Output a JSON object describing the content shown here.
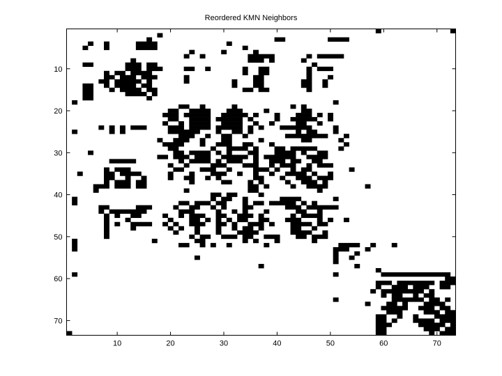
{
  "chart_data": {
    "type": "heatmap",
    "title": "Reordered KMN Neighbors",
    "xlabel": "",
    "ylabel": "",
    "xlim": [
      0.5,
      73.5
    ],
    "ylim": [
      0.5,
      73.5
    ],
    "y_reversed": true,
    "grid": false,
    "x_ticks": [
      10,
      20,
      30,
      40,
      50,
      60,
      70
    ],
    "y_ticks": [
      10,
      20,
      30,
      40,
      50,
      60,
      70
    ],
    "colors": {
      "filled": "#000000",
      "empty": "#ffffff"
    },
    "nonzeros_by_row": [
      [
        59,
        73
      ],
      [
        18
      ],
      [
        16,
        [
          40,
          41
        ],
        [
          50,
          53
        ]
      ],
      [
        5,
        8,
        [
          14,
          17
        ],
        31
      ],
      [
        4,
        8,
        [
          14,
          17
        ],
        34
      ],
      [
        24,
        30,
        36
      ],
      [
        23,
        26,
        [
          35,
          39
        ],
        46,
        [
          48,
          52
        ]
      ],
      [
        13,
        [
          35,
          37
        ],
        39,
        45
      ],
      [
        [
          4,
          5
        ],
        [
          12,
          14
        ],
        [
          16,
          17
        ],
        47
      ],
      [
        [
          12,
          14
        ],
        [
          16,
          18
        ],
        [
          23,
          24
        ],
        27,
        34,
        [
          37,
          38
        ],
        46,
        [
          48,
          50
        ]
      ],
      [
        8,
        [
          10,
          11
        ],
        [
          13,
          16
        ],
        34,
        [
          37,
          38
        ],
        46
      ],
      [
        [
          8,
          9
        ],
        [
          11,
          13
        ],
        [
          15,
          17
        ],
        23,
        [
          36,
          37
        ],
        46,
        50
      ],
      [
        [
          7,
          8
        ],
        [
          10,
          14
        ],
        16,
        23,
        32,
        [
          36,
          37
        ],
        [
          45,
          46
        ],
        49
      ],
      [
        [
          4,
          5
        ],
        8,
        [
          10,
          13
        ],
        [
          15,
          16
        ],
        32,
        [
          36,
          37
        ],
        [
          45,
          46
        ],
        49
      ],
      [
        [
          4,
          5
        ],
        9,
        [
          11,
          14
        ],
        [
          16,
          17
        ],
        [
          34,
          35
        ],
        [
          37,
          38
        ],
        46
      ],
      [
        [
          4,
          5
        ],
        [
          12,
          15
        ],
        17
      ],
      [
        [
          4,
          5
        ],
        16
      ],
      [
        2,
        51
      ],
      [
        [
          22,
          23
        ],
        26,
        32,
        43,
        45
      ],
      [
        [
          20,
          21
        ],
        [
          24,
          27
        ],
        [
          31,
          33
        ],
        38,
        [
          45,
          46
        ]
      ],
      [
        [
          19,
          21
        ],
        [
          23,
          27
        ],
        [
          30,
          34
        ],
        36,
        40,
        [
          44,
          46
        ],
        48,
        50
      ],
      [
        [
          20,
          21
        ],
        [
          24,
          27
        ],
        [
          29,
          33
        ],
        35,
        40,
        [
          43,
          47
        ],
        50
      ],
      [
        19,
        22,
        [
          24,
          27
        ],
        [
          30,
          33
        ],
        36,
        39,
        [
          44,
          45
        ],
        48
      ],
      [
        7,
        9,
        11,
        [
          13,
          15
        ],
        [
          20,
          22
        ],
        [
          24,
          27
        ],
        [
          29,
          33
        ],
        35,
        37,
        [
          41,
          46
        ],
        51
      ],
      [
        2,
        9,
        11,
        [
          20,
          25
        ],
        29,
        [
          32,
          33
        ],
        35,
        44,
        [
          46,
          47
        ],
        51
      ],
      [
        [
          22,
          24
        ],
        27,
        [
          30,
          31
        ],
        34,
        [
          42,
          49
        ],
        53
      ],
      [
        18,
        [
          21,
          23
        ],
        26,
        [
          30,
          31
        ],
        37,
        [
          45,
          46
        ],
        52
      ],
      [
        [
          19,
          22
        ],
        26,
        [
          29,
          31
        ],
        [
          34,
          35
        ],
        39,
        53
      ],
      [
        [
          20,
          21
        ],
        28,
        [
          31,
          34
        ],
        36,
        [
          40,
          41
        ],
        [
          43,
          47
        ],
        52
      ],
      [
        5,
        [
          21,
          22
        ],
        [
          24,
          27
        ],
        29,
        31,
        [
          35,
          36
        ],
        [
          40,
          43
        ],
        45,
        [
          48,
          49
        ]
      ],
      [
        [
          18,
          19
        ],
        [
          21,
          23
        ],
        [
          25,
          27
        ],
        [
          30,
          34
        ],
        36,
        [
          38,
          43
        ],
        [
          46,
          49
        ]
      ],
      [
        [
          9,
          13
        ],
        22,
        [
          24,
          27
        ],
        29,
        [
          31,
          33
        ],
        36,
        [
          39,
          41
        ],
        [
          43,
          44
        ],
        [
          47,
          48
        ]
      ],
      [
        20,
        23,
        [
          28,
          30
        ],
        [
          34,
          36
        ],
        39,
        [
          41,
          43
        ],
        46,
        [
          48,
          50
        ]
      ],
      [
        8,
        [
          10,
          12
        ],
        [
          21,
          22
        ],
        [
          26,
          28
        ],
        31,
        [
          36,
          38
        ],
        40,
        43,
        [
          45,
          46
        ],
        54
      ],
      [
        3,
        [
          8,
          9
        ],
        [
          11,
          14
        ],
        20,
        24,
        [
          28,
          30
        ],
        33,
        36,
        39,
        [
          42,
          45
        ],
        47,
        50
      ],
      [
        [
          8,
          9
        ],
        12,
        15,
        20,
        [
          23,
          24
        ],
        27,
        29,
        [
          36,
          37
        ],
        41,
        [
          44,
          46
        ],
        [
          48,
          50
        ]
      ],
      [
        8,
        [
          10,
          12
        ],
        [
          14,
          15
        ],
        24,
        [
          30,
          31
        ],
        35,
        37,
        42,
        [
          45,
          47
        ],
        49
      ],
      [
        [
          6,
          8
        ],
        [
          10,
          12
        ],
        [
          14,
          15
        ],
        [
          35,
          36
        ],
        38,
        43,
        [
          46,
          49
        ],
        57
      ],
      [
        6,
        23,
        [
          35,
          36
        ],
        48
      ],
      [
        [
          28,
          29
        ],
        [
          31,
          32
        ],
        37
      ],
      [
        2,
        28,
        [
          30,
          31
        ],
        34,
        [
          41,
          44
        ],
        51
      ],
      [
        2,
        [
          22,
          23
        ],
        [
          25,
          27
        ],
        [
          29,
          30
        ],
        34,
        [
          36,
          37
        ],
        [
          39,
          43
        ],
        45,
        47
      ],
      [
        [
          7,
          8
        ],
        [
          14,
          16
        ],
        21,
        [
          24,
          25
        ],
        28,
        30,
        [
          34,
          35
        ],
        [
          42,
          44
        ],
        [
          46,
          51
        ]
      ],
      [
        7,
        [
          9,
          15
        ],
        [
          22,
          24
        ],
        29,
        32,
        34,
        38,
        [
          44,
          45
        ],
        48
      ],
      [
        8,
        10,
        [
          13,
          14
        ],
        19,
        22,
        [
          24,
          26
        ],
        [
          29,
          30
        ],
        [
          33,
          35
        ],
        37,
        43,
        [
          45,
          48
        ]
      ],
      [
        8,
        12,
        20,
        [
          24,
          25
        ],
        27,
        29,
        31,
        [
          33,
          34
        ],
        [
          37,
          38
        ],
        [
          42,
          44
        ],
        48,
        50,
        53
      ],
      [
        8,
        10,
        [
          13,
          16
        ],
        19,
        21,
        [
          24,
          26
        ],
        [
          29,
          30
        ],
        32,
        [
          35,
          37
        ],
        39,
        [
          43,
          46
        ],
        [
          48,
          49
        ]
      ],
      [
        8,
        13,
        20,
        22,
        25,
        29,
        32,
        [
          34,
          35
        ],
        37,
        [
          43,
          44
        ],
        47
      ],
      [
        8,
        21,
        25,
        29,
        [
          33,
          36
        ],
        [
          43,
          46
        ],
        49
      ],
      [
        8,
        24,
        [
          26,
          27
        ],
        [
          30,
          32
        ],
        [
          34,
          35
        ],
        [
          38,
          40
        ],
        [
          44,
          45
        ],
        [
          47,
          49
        ]
      ],
      [
        2,
        17,
        [
          25,
          26
        ],
        34,
        36,
        40,
        47
      ],
      [
        2,
        [
          22,
          23
        ],
        26,
        28,
        31,
        38,
        [
          52,
          55
        ],
        58,
        62
      ],
      [
        2,
        [
          51,
          53
        ],
        57
      ],
      [
        51,
        55
      ],
      [
        25,
        51,
        54
      ],
      [
        51
      ],
      [
        37,
        55
      ],
      [
        59
      ],
      [
        2,
        51,
        [
          60,
          72
        ]
      ],
      [
        [
          72,
          73
        ]
      ],
      [
        [
          59,
          61
        ],
        [
          63,
          69
        ],
        [
          71,
          73
        ]
      ],
      [
        59,
        [
          62,
          64
        ],
        [
          66,
          68
        ],
        [
          71,
          72
        ]
      ],
      [
        58,
        [
          60,
          67
        ],
        69
      ],
      [
        60,
        [
          62,
          63
        ],
        66,
        [
          68,
          69
        ]
      ],
      [
        51,
        [
          62,
          67
        ],
        [
          69,
          70
        ],
        72
      ],
      [
        57,
        [
          61,
          62
        ],
        64,
        [
          68,
          71
        ]
      ],
      [
        [
          60,
          64
        ],
        [
          67,
          69
        ],
        [
          71,
          72
        ]
      ],
      [
        [
          61,
          63
        ],
        [
          68,
          70
        ],
        [
          72,
          73
        ]
      ],
      [
        [
          59,
          60
        ],
        63,
        66,
        [
          70,
          73
        ]
      ],
      [
        [
          59,
          60
        ],
        62,
        [
          66,
          69
        ],
        [
          71,
          73
        ]
      ],
      [
        [
          59,
          61
        ],
        [
          67,
          71
        ],
        73
      ],
      [
        [
          59,
          60
        ],
        [
          68,
          70
        ],
        [
          72,
          73
        ]
      ],
      [
        1,
        [
          59,
          60
        ],
        69,
        [
          71,
          73
        ]
      ]
    ]
  }
}
